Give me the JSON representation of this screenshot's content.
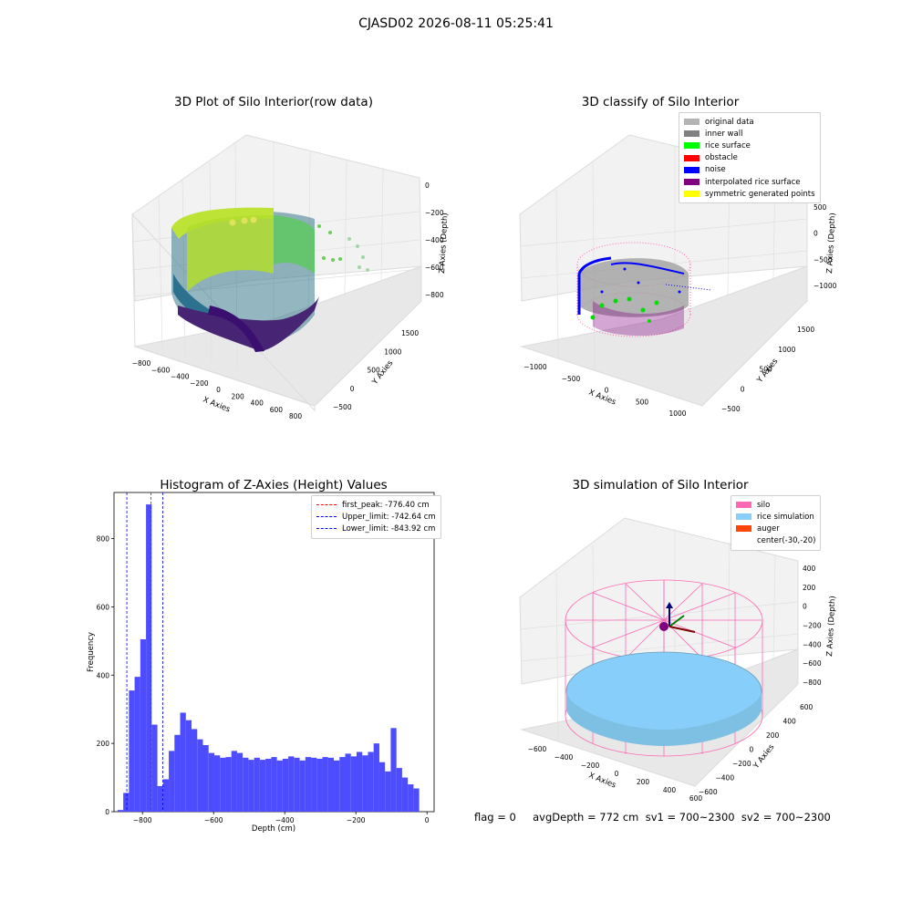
{
  "suptitle": "CJASD02 2026-08-11 05:25:41",
  "footer": "flag = 0     avgDepth = 772 cm  sv1 = 700~2300  sv2 = 700~2300",
  "chart_data": [
    {
      "type": "scatter",
      "subtype": "3d",
      "title": "3D Plot of Silo Interior(row data)",
      "xlabel": "X Axies",
      "ylabel": "Y Axies",
      "zlabel": "Z Axies (Depth)",
      "x_ticks": [
        "−800",
        "−600",
        "−400",
        "−200",
        "0",
        "200",
        "400",
        "600",
        "800"
      ],
      "y_ticks": [
        "−500",
        "0",
        "500",
        "1000",
        "1500"
      ],
      "z_ticks": [
        "0",
        "−200",
        "−400",
        "−600",
        "−800"
      ],
      "colormap": "viridis"
    },
    {
      "type": "scatter",
      "subtype": "3d",
      "title": "3D classify of Silo Interior",
      "xlabel": "X Axies",
      "ylabel": "Y Axies",
      "zlabel": "Z Axies (Depth)",
      "x_ticks": [
        "−1000",
        "−500",
        "0",
        "500",
        "1000"
      ],
      "y_ticks": [
        "−500",
        "0",
        "500",
        "1000",
        "1500"
      ],
      "z_ticks": [
        "500",
        "0",
        "−500",
        "−1000"
      ],
      "legend_position": "top-right",
      "legend": [
        {
          "label": "original data",
          "color": "#b3b3b3"
        },
        {
          "label": "inner wall",
          "color": "#808080"
        },
        {
          "label": "rice surface",
          "color": "#00ff00"
        },
        {
          "label": "obstacle",
          "color": "#ff0000"
        },
        {
          "label": "noise",
          "color": "#0000ff"
        },
        {
          "label": "interpolated rice surface",
          "color": "#800080"
        },
        {
          "label": "symmetric generated points",
          "color": "#ffff00"
        }
      ]
    },
    {
      "type": "bar",
      "subtype": "histogram",
      "title": "Histogram of Z-Axies (Height) Values",
      "xlabel": "Depth (cm)",
      "ylabel": "Frequency",
      "xlim": [
        -880,
        20
      ],
      "ylim": [
        0,
        935
      ],
      "x_ticks": [
        -800,
        -600,
        -400,
        -200,
        0
      ],
      "x_tick_labels": [
        "−800",
        "−600",
        "−400",
        "−200",
        "0"
      ],
      "y_ticks": [
        0,
        200,
        400,
        600,
        800
      ],
      "bar_color": "#4d4dff",
      "bin_width": 16,
      "bin_starts": [
        -870,
        -854,
        -838,
        -822,
        -806,
        -790,
        -774,
        -758,
        -742,
        -726,
        -710,
        -694,
        -678,
        -662,
        -646,
        -630,
        -614,
        -598,
        -582,
        -566,
        -550,
        -534,
        -518,
        -502,
        -486,
        -470,
        -454,
        -438,
        -422,
        -406,
        -390,
        -374,
        -358,
        -342,
        -326,
        -310,
        -294,
        -278,
        -262,
        -246,
        -230,
        -214,
        -198,
        -182,
        -166,
        -150,
        -134,
        -118,
        -102,
        -86,
        -70,
        -54,
        -38,
        -22
      ],
      "values": [
        5,
        55,
        355,
        395,
        505,
        900,
        255,
        75,
        95,
        178,
        225,
        290,
        268,
        242,
        212,
        195,
        172,
        165,
        158,
        160,
        178,
        172,
        158,
        152,
        158,
        152,
        155,
        160,
        150,
        155,
        162,
        158,
        150,
        160,
        158,
        155,
        160,
        158,
        150,
        160,
        170,
        162,
        175,
        165,
        175,
        200,
        145,
        118,
        245,
        128,
        100,
        80,
        68,
        0
      ],
      "vlines": [
        {
          "label": "first_peak: -776.40 cm",
          "x": -776.4,
          "color": "#ff0000",
          "style": "dashed"
        },
        {
          "label": "Upper_limit: -742.64 cm",
          "x": -742.64,
          "color": "#0000ff",
          "style": "dashed"
        },
        {
          "label": "Lower_limit: -843.92 cm",
          "x": -843.92,
          "color": "#0000ff",
          "style": "dashed"
        }
      ],
      "legend_position": "top-right"
    },
    {
      "type": "scatter",
      "subtype": "3d-surface",
      "title": "3D simulation of Silo Interior",
      "xlabel": "X Axies",
      "ylabel": "Y Axies",
      "zlabel": "Z Axies (Depth)",
      "x_ticks": [
        "−600",
        "−400",
        "−200",
        "0",
        "200",
        "400",
        "600"
      ],
      "y_ticks": [
        "−600",
        "−400",
        "−200",
        "0",
        "200",
        "400",
        "600"
      ],
      "z_ticks": [
        "400",
        "200",
        "0",
        "−200",
        "−400",
        "−600",
        "−800"
      ],
      "legend_position": "top-right",
      "legend": [
        {
          "label": "silo",
          "color": "#ff69b4"
        },
        {
          "label": "rice simulation",
          "color": "#87cefa"
        },
        {
          "label": "auger",
          "color": "#ff4500"
        },
        {
          "label": "center(-30,-20)",
          "color": ""
        }
      ]
    }
  ]
}
